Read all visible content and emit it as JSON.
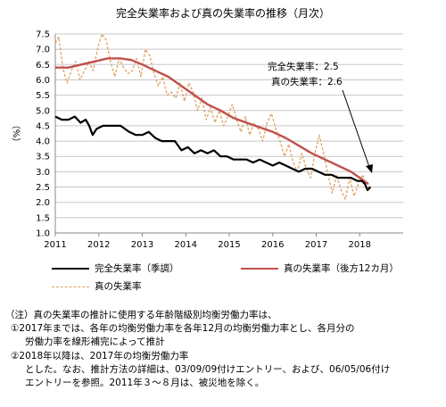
{
  "chart_data": {
    "type": "line",
    "title": "完全失業率および真の失業率の推移（月次）",
    "ylabel": "（%）",
    "ylim": [
      1.0,
      7.5
    ],
    "yticks": [
      "7.5",
      "7.0",
      "6.5",
      "6.0",
      "5.5",
      "5.0",
      "4.5",
      "4.0",
      "3.5",
      "3.0",
      "2.5",
      "2.0",
      "1.5",
      "1.0"
    ],
    "xlim": [
      2011.0,
      2019.0
    ],
    "xticks": [
      "2011",
      "2012",
      "2013",
      "2014",
      "2015",
      "2016",
      "2017",
      "2018"
    ],
    "grid": "horizontal",
    "series": [
      {
        "name": "完全失業率（季調）",
        "style": "solid-black",
        "color": "#000000",
        "points": [
          [
            2011.0,
            4.8
          ],
          [
            2011.15,
            4.7
          ],
          [
            2011.3,
            4.7
          ],
          [
            2011.45,
            4.8
          ],
          [
            2011.58,
            4.6
          ],
          [
            2011.7,
            4.7
          ],
          [
            2011.78,
            4.5
          ],
          [
            2011.86,
            4.2
          ],
          [
            2011.95,
            4.4
          ],
          [
            2012.1,
            4.5
          ],
          [
            2012.3,
            4.5
          ],
          [
            2012.5,
            4.5
          ],
          [
            2012.7,
            4.3
          ],
          [
            2012.85,
            4.2
          ],
          [
            2013.0,
            4.2
          ],
          [
            2013.15,
            4.3
          ],
          [
            2013.3,
            4.1
          ],
          [
            2013.45,
            4.0
          ],
          [
            2013.6,
            4.0
          ],
          [
            2013.75,
            4.0
          ],
          [
            2013.9,
            3.7
          ],
          [
            2014.05,
            3.8
          ],
          [
            2014.2,
            3.6
          ],
          [
            2014.35,
            3.7
          ],
          [
            2014.5,
            3.6
          ],
          [
            2014.65,
            3.7
          ],
          [
            2014.8,
            3.5
          ],
          [
            2014.95,
            3.5
          ],
          [
            2015.1,
            3.4
          ],
          [
            2015.25,
            3.4
          ],
          [
            2015.4,
            3.4
          ],
          [
            2015.55,
            3.3
          ],
          [
            2015.7,
            3.4
          ],
          [
            2015.85,
            3.3
          ],
          [
            2016.0,
            3.2
          ],
          [
            2016.15,
            3.3
          ],
          [
            2016.3,
            3.2
          ],
          [
            2016.45,
            3.1
          ],
          [
            2016.6,
            3.0
          ],
          [
            2016.75,
            3.1
          ],
          [
            2016.9,
            3.1
          ],
          [
            2017.05,
            3.0
          ],
          [
            2017.2,
            2.9
          ],
          [
            2017.35,
            2.9
          ],
          [
            2017.5,
            2.8
          ],
          [
            2017.65,
            2.8
          ],
          [
            2017.8,
            2.8
          ],
          [
            2017.95,
            2.7
          ],
          [
            2018.05,
            2.7
          ],
          [
            2018.12,
            2.6
          ],
          [
            2018.18,
            2.4
          ],
          [
            2018.25,
            2.5
          ]
        ]
      },
      {
        "name": "真の失業率（後方12カ月）",
        "style": "solid-red",
        "color": "#c0504d",
        "points": [
          [
            2011.0,
            6.4
          ],
          [
            2011.3,
            6.4
          ],
          [
            2011.6,
            6.5
          ],
          [
            2011.9,
            6.6
          ],
          [
            2012.2,
            6.7
          ],
          [
            2012.5,
            6.7
          ],
          [
            2012.75,
            6.65
          ],
          [
            2013.0,
            6.5
          ],
          [
            2013.3,
            6.3
          ],
          [
            2013.6,
            6.1
          ],
          [
            2013.9,
            5.8
          ],
          [
            2014.2,
            5.5
          ],
          [
            2014.5,
            5.2
          ],
          [
            2014.8,
            5.0
          ],
          [
            2015.1,
            4.75
          ],
          [
            2015.4,
            4.6
          ],
          [
            2015.7,
            4.45
          ],
          [
            2016.0,
            4.3
          ],
          [
            2016.3,
            4.1
          ],
          [
            2016.6,
            3.85
          ],
          [
            2016.9,
            3.6
          ],
          [
            2017.2,
            3.4
          ],
          [
            2017.5,
            3.2
          ],
          [
            2017.8,
            3.0
          ],
          [
            2018.0,
            2.8
          ],
          [
            2018.1,
            2.7
          ],
          [
            2018.2,
            2.6
          ]
        ]
      },
      {
        "name": "真の失業率",
        "style": "dashed-orange",
        "color": "#e0a060",
        "points": [
          [
            2011.0,
            7.2
          ],
          [
            2011.08,
            7.4
          ],
          [
            2011.17,
            6.4
          ],
          [
            2011.27,
            5.9
          ],
          [
            2011.37,
            6.3
          ],
          [
            2011.47,
            6.6
          ],
          [
            2011.57,
            6.0
          ],
          [
            2011.67,
            6.3
          ],
          [
            2011.77,
            6.6
          ],
          [
            2011.87,
            6.3
          ],
          [
            2011.97,
            7.0
          ],
          [
            2012.07,
            7.5
          ],
          [
            2012.17,
            7.3
          ],
          [
            2012.27,
            6.6
          ],
          [
            2012.37,
            6.1
          ],
          [
            2012.47,
            6.7
          ],
          [
            2012.57,
            6.4
          ],
          [
            2012.67,
            6.2
          ],
          [
            2012.77,
            6.3
          ],
          [
            2012.87,
            6.7
          ],
          [
            2012.97,
            6.1
          ],
          [
            2013.07,
            7.0
          ],
          [
            2013.17,
            6.8
          ],
          [
            2013.27,
            6.2
          ],
          [
            2013.37,
            5.8
          ],
          [
            2013.47,
            6.1
          ],
          [
            2013.57,
            5.5
          ],
          [
            2013.67,
            5.6
          ],
          [
            2013.77,
            5.4
          ],
          [
            2013.87,
            5.9
          ],
          [
            2013.97,
            5.3
          ],
          [
            2014.07,
            5.9
          ],
          [
            2014.17,
            5.6
          ],
          [
            2014.27,
            5.0
          ],
          [
            2014.37,
            5.4
          ],
          [
            2014.47,
            4.7
          ],
          [
            2014.57,
            5.1
          ],
          [
            2014.67,
            4.6
          ],
          [
            2014.77,
            5.0
          ],
          [
            2014.87,
            4.5
          ],
          [
            2014.97,
            4.8
          ],
          [
            2015.07,
            5.2
          ],
          [
            2015.17,
            4.7
          ],
          [
            2015.27,
            4.3
          ],
          [
            2015.37,
            4.8
          ],
          [
            2015.47,
            4.2
          ],
          [
            2015.57,
            4.6
          ],
          [
            2015.67,
            4.4
          ],
          [
            2015.77,
            4.0
          ],
          [
            2015.87,
            4.6
          ],
          [
            2015.97,
            4.9
          ],
          [
            2016.07,
            4.4
          ],
          [
            2016.17,
            4.0
          ],
          [
            2016.27,
            3.5
          ],
          [
            2016.37,
            3.9
          ],
          [
            2016.47,
            3.3
          ],
          [
            2016.57,
            3.0
          ],
          [
            2016.67,
            3.6
          ],
          [
            2016.77,
            3.1
          ],
          [
            2016.87,
            2.8
          ],
          [
            2016.97,
            3.6
          ],
          [
            2017.07,
            4.2
          ],
          [
            2017.17,
            3.6
          ],
          [
            2017.27,
            2.9
          ],
          [
            2017.37,
            2.3
          ],
          [
            2017.47,
            2.9
          ],
          [
            2017.57,
            2.4
          ],
          [
            2017.67,
            2.1
          ],
          [
            2017.77,
            2.8
          ],
          [
            2017.87,
            2.2
          ],
          [
            2017.97,
            2.6
          ],
          [
            2018.07,
            2.9
          ],
          [
            2018.17,
            2.4
          ],
          [
            2018.25,
            2.6
          ]
        ]
      }
    ],
    "annotations": {
      "line1": "完全失業率：2.5",
      "line2": "真の失業率：2.6"
    }
  },
  "legend": {
    "items": [
      {
        "label": "完全失業率（季調）",
        "color": "#000000",
        "style": "solid"
      },
      {
        "label": "真の失業率（後方12カ月）",
        "color": "#c0504d",
        "style": "solid"
      },
      {
        "label": "真の失業率",
        "color": "#e0a060",
        "style": "dashed"
      }
    ]
  },
  "notes": [
    "（注）真の失業率の推計に使用する年齢階級別均衡労働力率は、",
    "①2017年までは、各年の均衡労働力率を各年12月の均衡労働力率とし、各月分の",
    "労働力率を線形補完によって推計",
    "②2018年以降は、2017年の均衡労働力率",
    "とした。なお、推計方法の詳細は、03/09/09付けエントリー、および、06/05/06付け",
    "エントリーを参照。2011年３～８月は、被災地を除く。"
  ]
}
